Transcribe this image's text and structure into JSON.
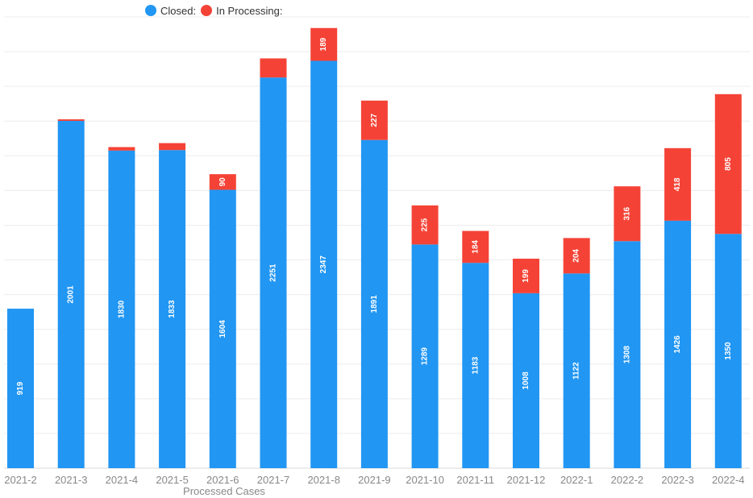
{
  "chart_data": {
    "type": "bar",
    "stacked": true,
    "xlabel": "Processed Cases",
    "ylabel": "",
    "ylim": [
      0,
      2600
    ],
    "grid": true,
    "legend_position": "top-left",
    "categories": [
      "2021-2",
      "2021-3",
      "2021-4",
      "2021-5",
      "2021-6",
      "2021-7",
      "2021-8",
      "2021-9",
      "2021-10",
      "2021-11",
      "2021-12",
      "2022-1",
      "2022-2",
      "2022-3",
      "2022-4"
    ],
    "series": [
      {
        "name": "Closed:",
        "color": "#2196f3",
        "values": [
          919,
          2001,
          1830,
          1833,
          1604,
          2251,
          2347,
          1891,
          1289,
          1183,
          1008,
          1122,
          1308,
          1426,
          1350
        ],
        "labels": [
          "919",
          "2001",
          "1830",
          "1833",
          "1604",
          "2251",
          "2347",
          "1891",
          "1289",
          "1183",
          "1008",
          "1122",
          "1308",
          "1426",
          "1350"
        ]
      },
      {
        "name": "In Processing:",
        "color": "#f44336",
        "values": [
          0,
          9,
          20,
          40,
          90,
          110,
          189,
          227,
          225,
          184,
          199,
          204,
          316,
          418,
          805
        ],
        "labels": [
          "",
          "",
          "",
          "",
          "90",
          "",
          "189",
          "227",
          "225",
          "184",
          "199",
          "204",
          "316",
          "418",
          "805"
        ]
      }
    ]
  }
}
